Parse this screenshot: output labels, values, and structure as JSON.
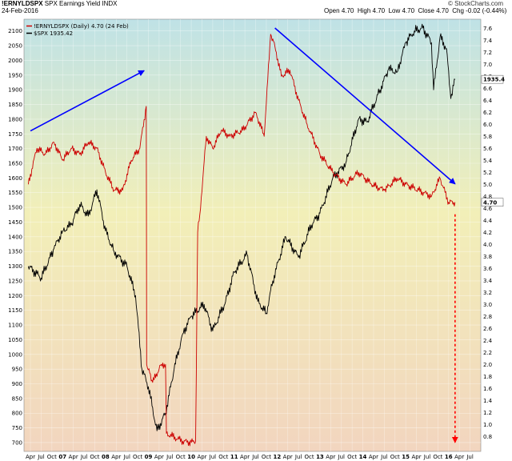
{
  "header": {
    "symbol": "!ERNYLDSPX",
    "description": "SPX Earnings Yield INDX",
    "date": "24-Feb-2016",
    "open_label": "Open",
    "open": "4.70",
    "high_label": "High",
    "high": "4.70",
    "low_label": "Low",
    "low": "4.70",
    "close_label": "Close",
    "close": "4.70",
    "chg_label": "Chg",
    "chg": "-0.02 (-0.44%)",
    "brand": "© StockCharts.com"
  },
  "legend": [
    {
      "text": "!ERNYLDSPX (Daily) 4.70 (24 Feb)",
      "color": "#cc0000"
    },
    {
      "text": "$SPX 1935.42",
      "color": "#000000"
    }
  ],
  "chart_data": {
    "type": "line",
    "xlabel": "",
    "ylabel": "",
    "x_tick_labels": [
      "Apr",
      "Jul",
      "Oct",
      "07",
      "Apr",
      "Jul",
      "Oct",
      "08",
      "Apr",
      "Jul",
      "Oct",
      "09",
      "Apr",
      "Jul",
      "Oct",
      "10",
      "Apr",
      "Jul",
      "Oct",
      "11",
      "Apr",
      "Jul",
      "Oct",
      "12",
      "Apr",
      "Jul",
      "Oct",
      "13",
      "Apr",
      "Jul",
      "Oct",
      "14",
      "Apr",
      "Jul",
      "Oct",
      "15",
      "Apr",
      "Jul",
      "Oct",
      "16",
      "Apr",
      "Jul"
    ],
    "left_axis": {
      "name": "$SPX",
      "ylim": [
        670,
        2140
      ],
      "ticks": [
        700,
        750,
        800,
        850,
        900,
        950,
        1000,
        1050,
        1100,
        1150,
        1200,
        1250,
        1300,
        1350,
        1400,
        1450,
        1500,
        1550,
        1600,
        1650,
        1700,
        1750,
        1800,
        1850,
        1900,
        1950,
        2000,
        2050,
        2100
      ]
    },
    "right_axis": {
      "name": "!ERNYLDSPX",
      "ylim": [
        0.55,
        7.75
      ],
      "ticks": [
        "0.8",
        "1.0",
        "1.2",
        "1.4",
        "1.6",
        "1.8",
        "2.0",
        "2.2",
        "2.4",
        "2.6",
        "2.8",
        "3.0",
        "3.2",
        "3.4",
        "3.6",
        "3.8",
        "4.0",
        "4.2",
        "4.4",
        "4.6",
        "4.8",
        "5.0",
        "5.2",
        "5.4",
        "5.6",
        "5.8",
        "6.0",
        "6.2",
        "6.4",
        "6.6",
        "6.8",
        "7.0",
        "7.2",
        "7.4",
        "7.6"
      ]
    },
    "last_value_labels": [
      {
        "series": "$SPX",
        "text": "1935.4",
        "value": 1935.42
      },
      {
        "series": "!ERNYLDSPX",
        "text": "4.70",
        "value": 4.7
      }
    ],
    "series": [
      {
        "name": "$SPX",
        "color": "#000000",
        "axis": "left",
        "t": [
          2006.2,
          2006.5,
          2006.8,
          2007.0,
          2007.2,
          2007.4,
          2007.6,
          2007.8,
          2008.0,
          2008.2,
          2008.5,
          2008.7,
          2008.85,
          2009.0,
          2009.2,
          2009.4,
          2009.6,
          2009.8,
          2010.0,
          2010.3,
          2010.5,
          2010.8,
          2011.0,
          2011.3,
          2011.55,
          2011.75,
          2011.9,
          2012.2,
          2012.5,
          2012.8,
          2013.0,
          2013.3,
          2013.6,
          2013.9,
          2014.1,
          2014.4,
          2014.6,
          2014.8,
          2015.0,
          2015.2,
          2015.4,
          2015.6,
          2015.65,
          2015.8,
          2015.95,
          2016.05,
          2016.15
        ],
        "values": [
          1300,
          1260,
          1360,
          1420,
          1440,
          1510,
          1470,
          1560,
          1420,
          1350,
          1300,
          1200,
          950,
          890,
          740,
          800,
          950,
          1070,
          1130,
          1170,
          1080,
          1180,
          1280,
          1340,
          1180,
          1140,
          1250,
          1400,
          1330,
          1440,
          1480,
          1600,
          1650,
          1800,
          1790,
          1900,
          1970,
          1960,
          2060,
          2100,
          2110,
          2060,
          1900,
          2080,
          2040,
          1870,
          1935
        ]
      },
      {
        "name": "!ERNYLDSPX",
        "color": "#cc0000",
        "axis": "right",
        "t": [
          2006.2,
          2006.4,
          2006.6,
          2006.8,
          2007.0,
          2007.2,
          2007.4,
          2007.6,
          2007.8,
          2008.0,
          2008.2,
          2008.4,
          2008.6,
          2008.8,
          2008.95,
          2008.96,
          2009.1,
          2009.3,
          2009.4,
          2009.42,
          2009.8,
          2010.0,
          2010.1,
          2010.15,
          2010.2,
          2010.35,
          2010.5,
          2010.7,
          2010.9,
          2011.2,
          2011.5,
          2011.7,
          2011.85,
          2011.95,
          2012.1,
          2012.3,
          2012.5,
          2012.7,
          2013.0,
          2013.3,
          2013.6,
          2013.9,
          2014.2,
          2014.5,
          2014.8,
          2015.0,
          2015.3,
          2015.6,
          2015.8,
          2016.0,
          2016.15
        ],
        "values": [
          5.0,
          5.6,
          5.5,
          5.7,
          5.4,
          5.6,
          5.5,
          5.7,
          5.6,
          5.2,
          4.9,
          4.9,
          5.4,
          5.6,
          6.3,
          2.0,
          1.7,
          2.0,
          2.0,
          0.85,
          0.72,
          0.7,
          0.72,
          4.2,
          4.5,
          5.8,
          5.6,
          5.9,
          5.8,
          5.9,
          6.2,
          5.8,
          7.5,
          7.3,
          6.8,
          6.9,
          6.4,
          6.0,
          5.5,
          5.2,
          5.0,
          5.2,
          5.0,
          4.9,
          5.1,
          5.0,
          4.9,
          4.8,
          5.1,
          4.7,
          4.7
        ]
      }
    ],
    "annotations": [
      {
        "type": "arrow",
        "color": "#0000ff",
        "from": {
          "t": 2006.25,
          "axis": "left",
          "y": 1760
        },
        "to": {
          "t": 2008.9,
          "axis": "left",
          "y": 1965
        }
      },
      {
        "type": "arrow",
        "color": "#0000ff",
        "from": {
          "t": 2011.95,
          "axis": "left",
          "y": 2110
        },
        "to": {
          "t": 2016.15,
          "axis": "left",
          "y": 1580
        }
      },
      {
        "type": "dashed-arrow",
        "color": "#ff0000",
        "from": {
          "t": 2016.15,
          "axis": "right",
          "y": 4.5
        },
        "to": {
          "t": 2016.15,
          "axis": "right",
          "y": 0.7
        }
      }
    ]
  }
}
